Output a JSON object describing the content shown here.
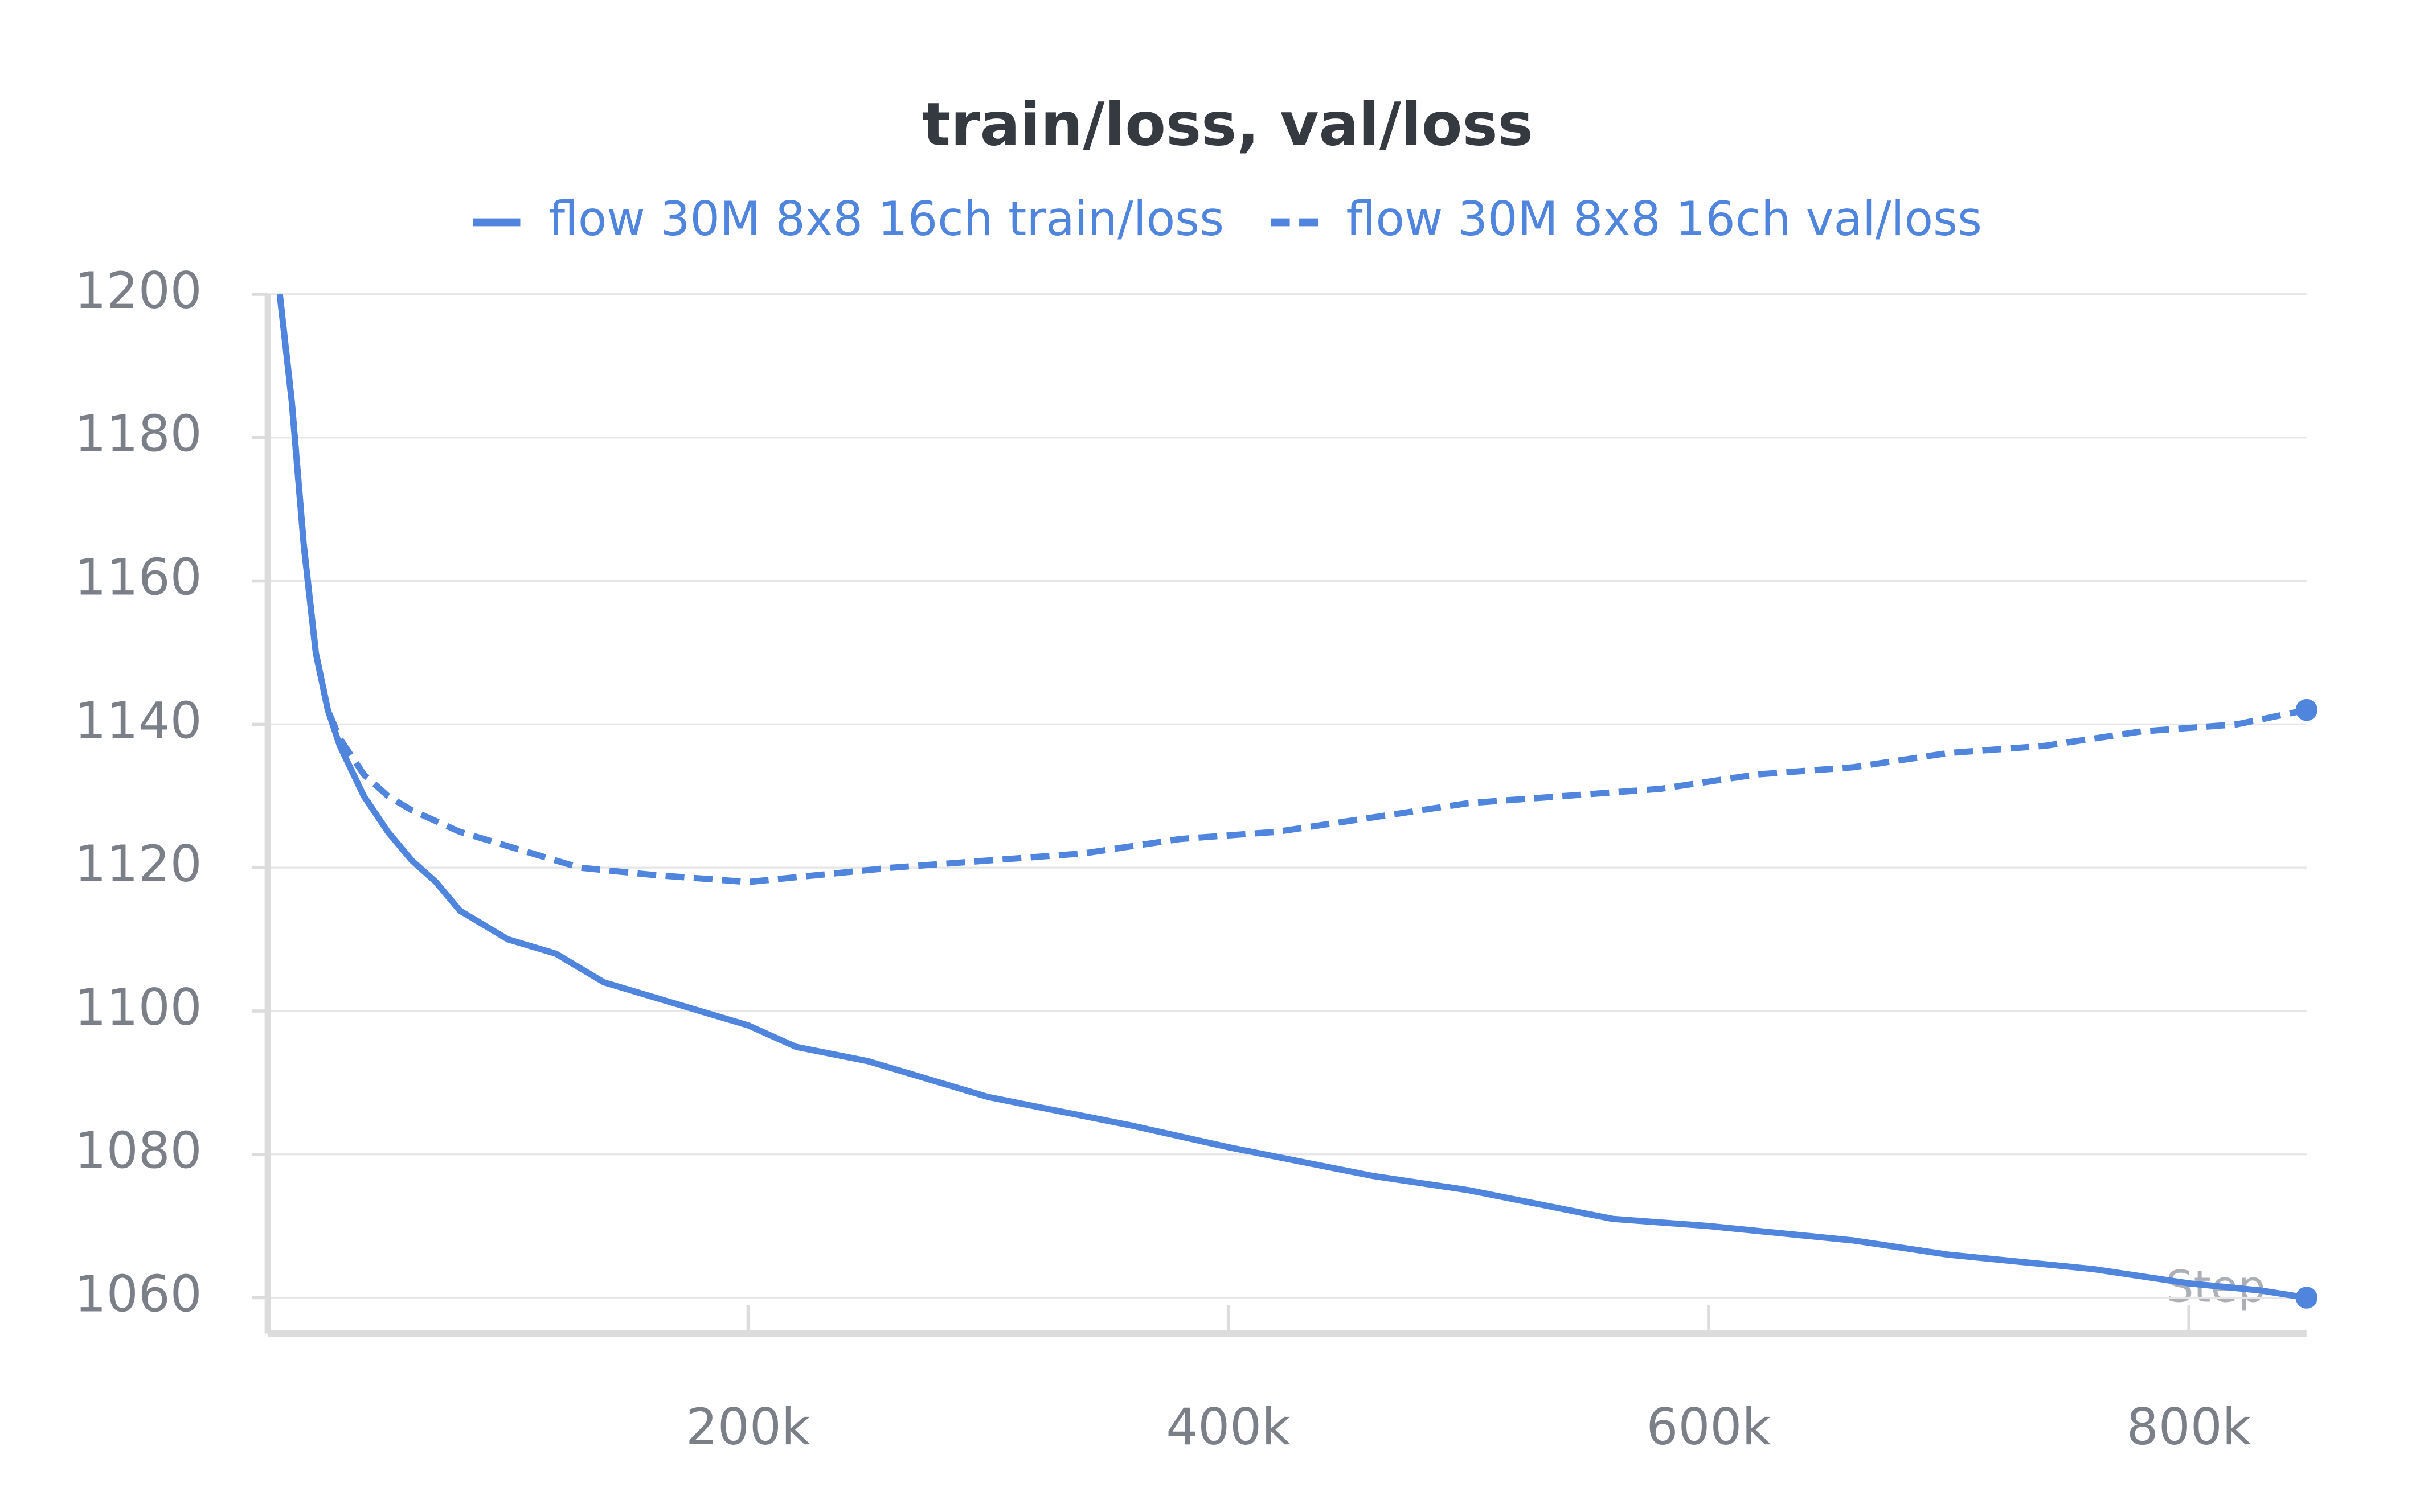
{
  "chart_data": {
    "type": "line",
    "title": "train/loss, val/loss",
    "xlabel": "Step",
    "xlim": [
      0,
      849000
    ],
    "ylim": [
      1055,
      1200
    ],
    "xticks": [
      {
        "value": 200000,
        "label": "200k"
      },
      {
        "value": 400000,
        "label": "400k"
      },
      {
        "value": 600000,
        "label": "600k"
      },
      {
        "value": 800000,
        "label": "800k"
      }
    ],
    "yticks": [
      1060,
      1080,
      1100,
      1120,
      1140,
      1160,
      1180,
      1200
    ],
    "grid": true,
    "legend": "top",
    "series": [
      {
        "name": "flow 30M 8x8 16ch train/loss",
        "color": "#5085de",
        "dash": false,
        "x": [
          5000,
          10000,
          15000,
          20000,
          25000,
          30000,
          40000,
          50000,
          60000,
          70000,
          80000,
          100000,
          120000,
          140000,
          160000,
          180000,
          200000,
          220000,
          250000,
          280000,
          300000,
          330000,
          360000,
          400000,
          430000,
          460000,
          500000,
          530000,
          560000,
          600000,
          630000,
          660000,
          700000,
          730000,
          760000,
          800000,
          830000,
          849000
        ],
        "values": [
          1200,
          1185,
          1165,
          1150,
          1142,
          1137,
          1130,
          1125,
          1121,
          1118,
          1114,
          1110,
          1108,
          1104,
          1102,
          1100,
          1098,
          1095,
          1093,
          1090,
          1088,
          1086,
          1084,
          1081,
          1079,
          1077,
          1075,
          1073,
          1071,
          1070,
          1069,
          1068,
          1066,
          1065,
          1064,
          1062,
          1061,
          1060
        ]
      },
      {
        "name": "flow 30M 8x8 16ch val/loss",
        "color": "#5085de",
        "dash": true,
        "x": [
          5000,
          10000,
          15000,
          20000,
          25000,
          30000,
          40000,
          50000,
          60000,
          80000,
          100000,
          130000,
          160000,
          200000,
          230000,
          260000,
          300000,
          340000,
          380000,
          420000,
          460000,
          500000,
          540000,
          580000,
          620000,
          660000,
          700000,
          740000,
          780000,
          820000,
          849000
        ],
        "values": [
          1200,
          1185,
          1165,
          1150,
          1142,
          1138,
          1133,
          1130,
          1128,
          1125,
          1123,
          1120,
          1119,
          1118,
          1119,
          1120,
          1121,
          1122,
          1124,
          1125,
          1127,
          1129,
          1130,
          1131,
          1133,
          1134,
          1136,
          1137,
          1139,
          1140,
          1142
        ]
      }
    ]
  }
}
